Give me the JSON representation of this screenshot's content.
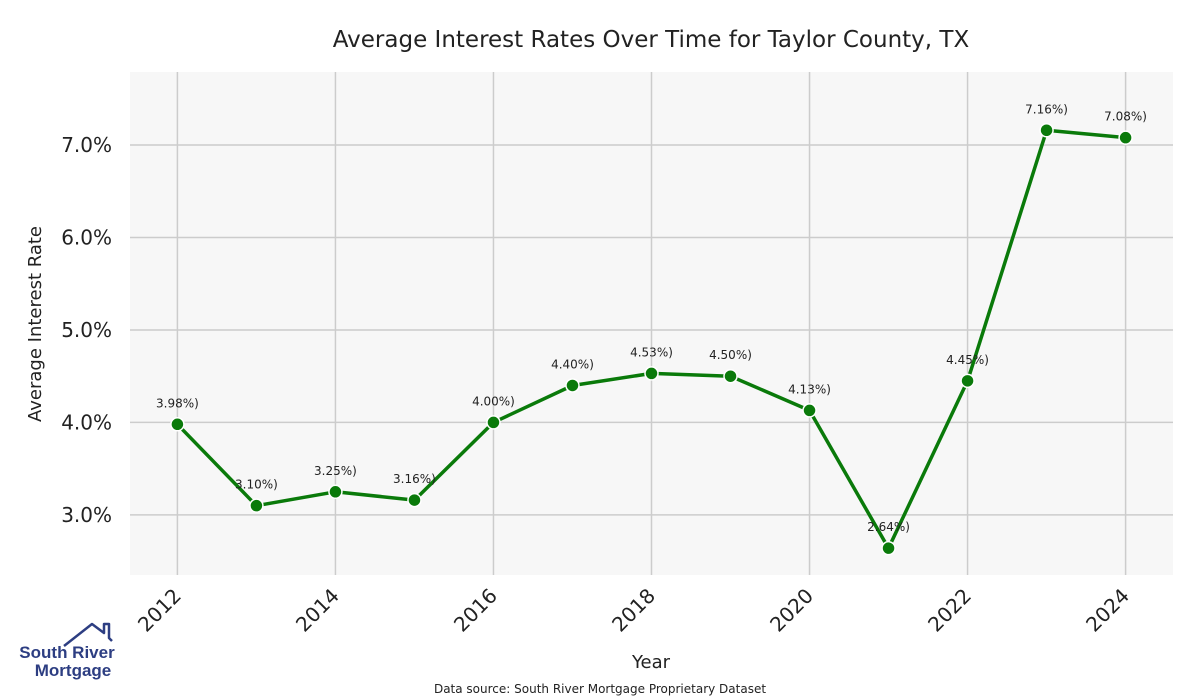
{
  "colors": {
    "line": "#0a7a0a",
    "marker": "#0a7a0a",
    "plot_bg": "#f7f7f7",
    "grid": "#cccccc",
    "logo": "#2d3e82"
  },
  "chart_data": {
    "type": "line",
    "title": "Average Interest Rates Over Time for Taylor County, TX",
    "xlabel": "Year",
    "ylabel": "Average Interest Rate",
    "x": [
      2012,
      2013,
      2014,
      2015,
      2016,
      2017,
      2018,
      2019,
      2020,
      2021,
      2022,
      2023,
      2024
    ],
    "series": [
      {
        "name": "Average Interest Rate",
        "values": [
          3.98,
          3.1,
          3.25,
          3.16,
          4.0,
          4.4,
          4.53,
          4.5,
          4.13,
          2.64,
          4.45,
          7.16,
          7.08
        ]
      }
    ],
    "data_labels": [
      "3.98%)",
      "3.10%)",
      "3.25%)",
      "3.16%)",
      "4.00%)",
      "4.40%)",
      "4.53%)",
      "4.50%)",
      "4.13%)",
      "2.64%)",
      "4.45%)",
      "7.16%)",
      "7.08%)"
    ],
    "x_ticks": [
      "2012",
      "2014",
      "2016",
      "2018",
      "2020",
      "2022",
      "2024"
    ],
    "x_tick_values": [
      2012,
      2014,
      2016,
      2018,
      2020,
      2022,
      2024
    ],
    "y_ticks": [
      "3.0%",
      "4.0%",
      "5.0%",
      "6.0%",
      "7.0%"
    ],
    "y_tick_values": [
      3.0,
      4.0,
      5.0,
      6.0,
      7.0
    ],
    "xlim": [
      2011.4,
      2024.6
    ],
    "ylim": [
      2.35,
      7.79
    ],
    "grid": true,
    "legend": "none"
  },
  "footer": {
    "source": "Data source: South River Mortgage Proprietary Dataset"
  },
  "logo": {
    "line1": "South River",
    "line2": "Mortgage",
    "icon": "house-roof-icon"
  }
}
